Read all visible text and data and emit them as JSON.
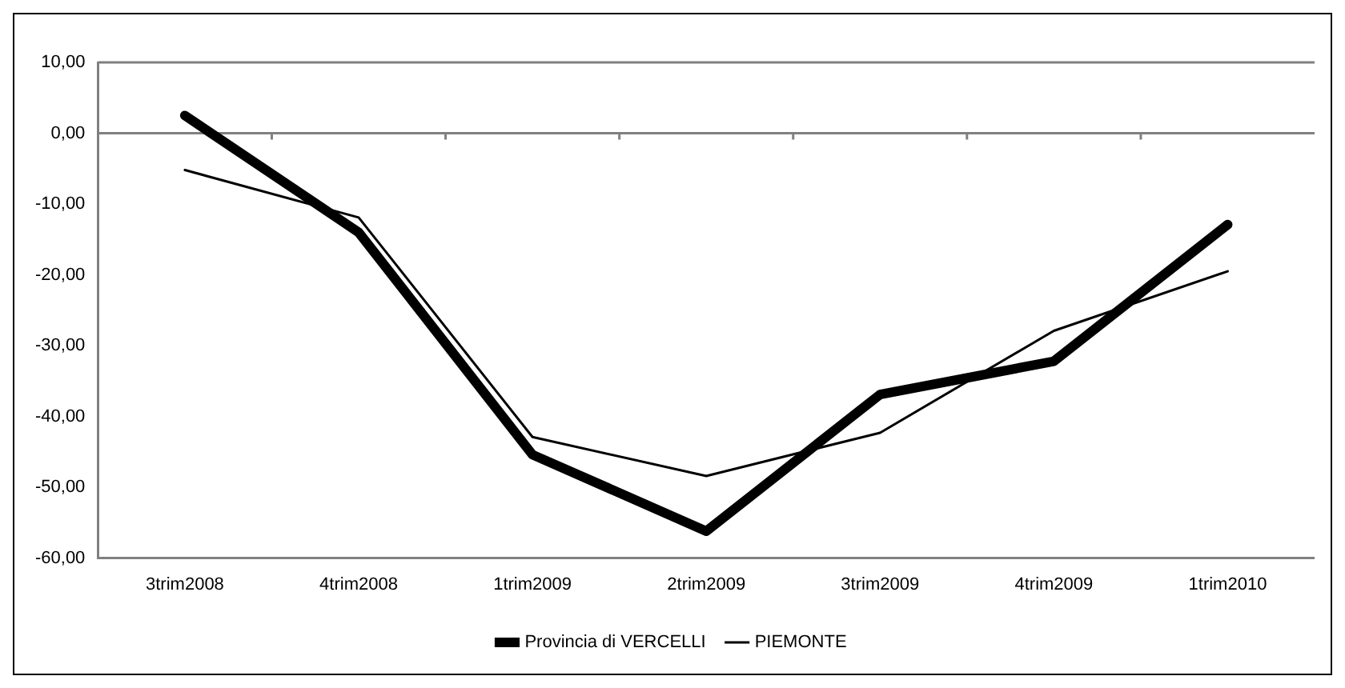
{
  "chart_data": {
    "type": "line",
    "categories": [
      "3trim2008",
      "4trim2008",
      "1trim2009",
      "2trim2009",
      "3trim2009",
      "4trim2009",
      "1trim2010"
    ],
    "series": [
      {
        "name": "Provincia di VERCELLI",
        "color": "#000000",
        "values": [
          2.5,
          -14.0,
          -45.4,
          -56.2,
          -36.9,
          -32.2,
          -12.9
        ]
      },
      {
        "name": "PIEMONTE",
        "color": "#000000",
        "values": [
          -5.2,
          -11.9,
          -42.9,
          -48.4,
          -42.3,
          -27.9,
          -19.5
        ]
      }
    ],
    "ylim": [
      -60,
      10
    ],
    "yticks": [
      {
        "value": -60,
        "label": "-60,00"
      },
      {
        "value": -50,
        "label": "-50,00"
      },
      {
        "value": -40,
        "label": "-40,00"
      },
      {
        "value": -30,
        "label": "-30,00"
      },
      {
        "value": -20,
        "label": "-20,00"
      },
      {
        "value": -10,
        "label": "-10,00"
      },
      {
        "value": 0,
        "label": "0,00"
      },
      {
        "value": 10,
        "label": "10,00"
      }
    ],
    "ref_lines": [
      {
        "axis": "y",
        "value": 0,
        "color": "#808080"
      }
    ],
    "grid": false,
    "legend": "bottom",
    "marker": "none",
    "line_style": "solid"
  }
}
